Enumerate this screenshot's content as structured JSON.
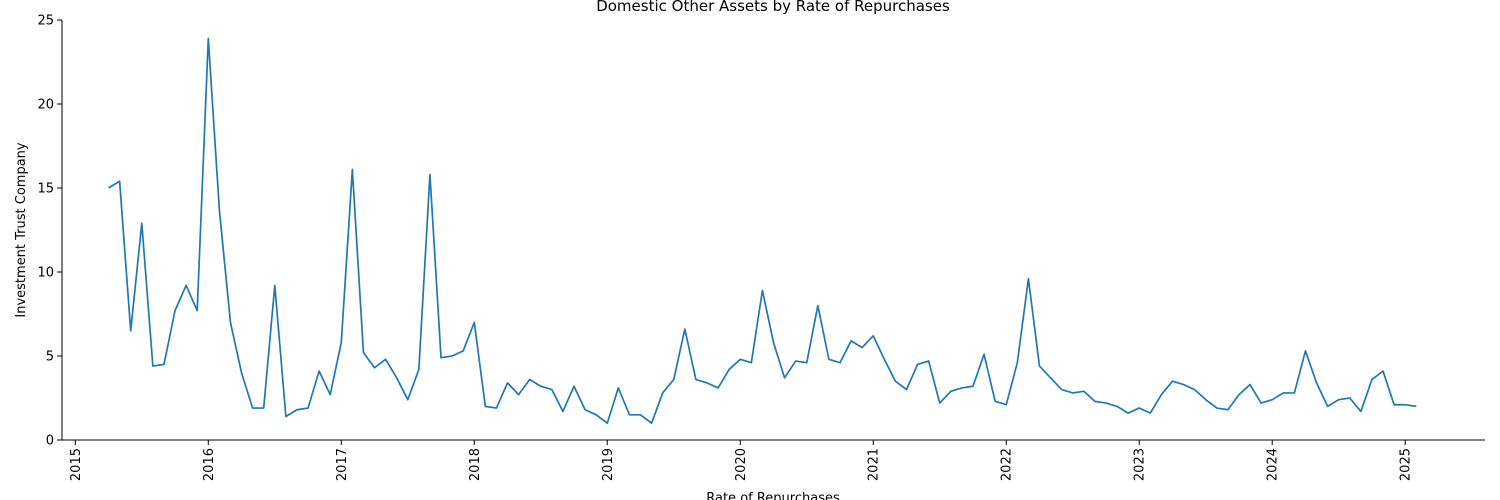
{
  "chart_data": {
    "type": "line",
    "title": "Domestic Other Assets by Rate of Repurchases",
    "xlabel": "Rate of Repurchases",
    "ylabel": "Investment Trust Company",
    "xlim": [
      2014.9,
      2025.6
    ],
    "ylim": [
      0,
      25
    ],
    "x_ticks": [
      "2015",
      "2016",
      "2017",
      "2018",
      "2019",
      "2020",
      "2021",
      "2022",
      "2023",
      "2024",
      "2025"
    ],
    "y_ticks": [
      "0",
      "5",
      "10",
      "15",
      "20",
      "25"
    ],
    "grid": false,
    "line_color": "#1f77b4",
    "series": [
      {
        "name": "Investment Trust Company",
        "start_year": 2015.25,
        "step_months": 1,
        "values": [
          15.0,
          15.4,
          6.5,
          12.9,
          4.4,
          4.5,
          7.7,
          9.2,
          7.7,
          23.9,
          13.7,
          7.0,
          4.0,
          1.9,
          1.9,
          9.2,
          1.4,
          1.8,
          1.9,
          4.1,
          2.7,
          5.8,
          16.1,
          5.2,
          4.3,
          4.8,
          3.7,
          2.4,
          4.2,
          15.8,
          4.9,
          5.0,
          5.3,
          7.0,
          2.0,
          1.9,
          3.4,
          2.7,
          3.6,
          3.2,
          3.0,
          1.7,
          3.2,
          1.8,
          1.5,
          1.0,
          3.1,
          1.5,
          1.5,
          1.0,
          2.8,
          3.6,
          6.6,
          3.6,
          3.4,
          3.1,
          4.2,
          4.8,
          4.6,
          8.9,
          5.8,
          3.7,
          4.7,
          4.6,
          8.0,
          4.8,
          4.6,
          5.9,
          5.5,
          6.2,
          4.8,
          3.5,
          3.0,
          4.5,
          4.7,
          2.2,
          2.9,
          3.1,
          3.2,
          5.1,
          2.3,
          2.1,
          4.6,
          9.6,
          4.4,
          3.7,
          3.0,
          2.8,
          2.9,
          2.3,
          2.2,
          2.0,
          1.6,
          1.9,
          1.6,
          2.7,
          3.5,
          3.3,
          3.0,
          2.4,
          1.9,
          1.8,
          2.7,
          3.3,
          2.2,
          2.4,
          2.8,
          2.8,
          5.3,
          3.4,
          2.0,
          2.4,
          2.5,
          1.7,
          3.6,
          4.1,
          2.1,
          2.1,
          2.0
        ]
      }
    ]
  }
}
